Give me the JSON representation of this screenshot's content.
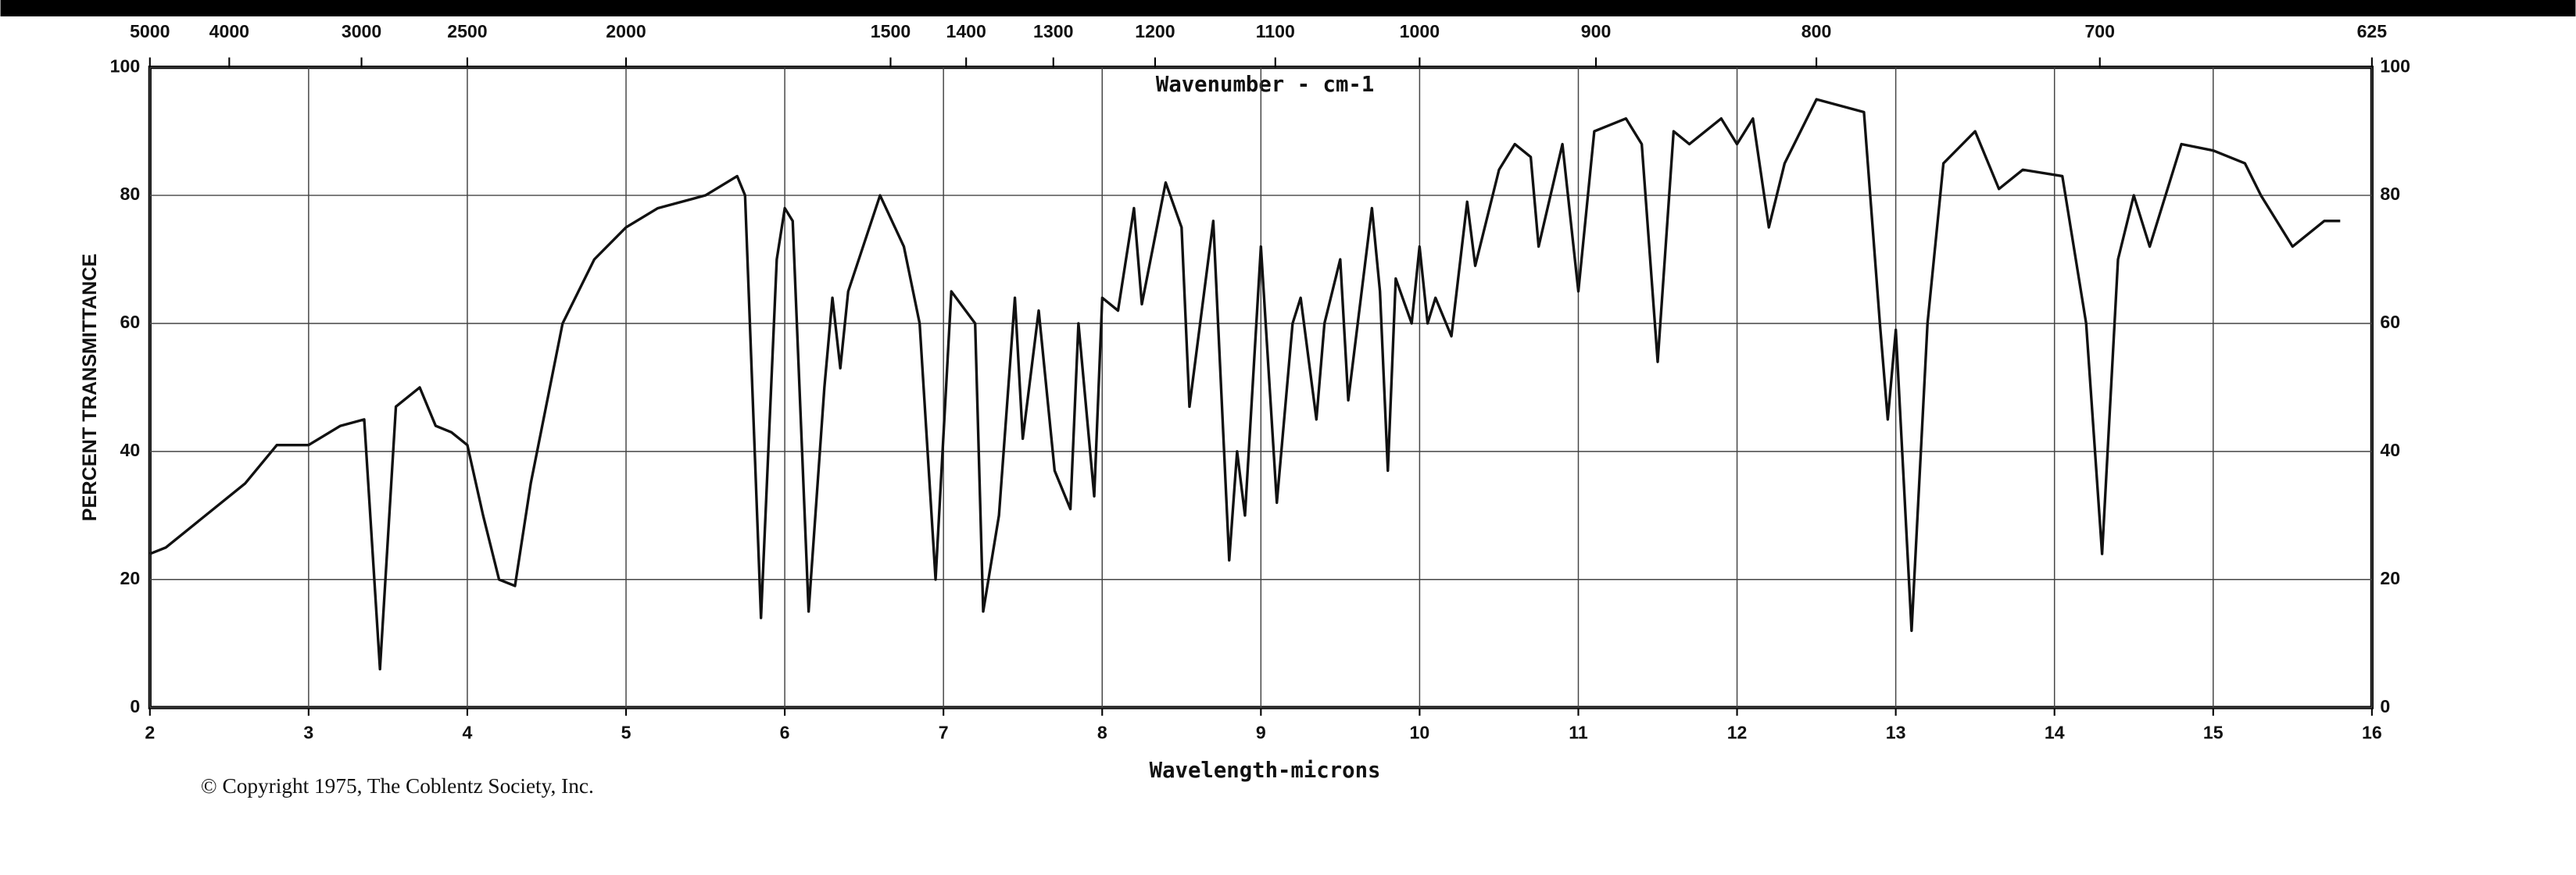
{
  "chart_data": {
    "type": "line",
    "title": "Wavenumber - cm-1",
    "xlabel": "Wavelength-microns",
    "ylabel": "PERCENT TRANSMITTANCE",
    "footnote": "© Copyright 1975, The Coblentz Society, Inc.",
    "xlim": [
      2,
      16
    ],
    "xticks": [
      2,
      3,
      4,
      5,
      6,
      7,
      8,
      9,
      10,
      11,
      12,
      13,
      14,
      15,
      16
    ],
    "ylim": [
      0,
      100
    ],
    "yticks": [
      0,
      20,
      40,
      60,
      80,
      100
    ],
    "x2lim": [
      5000,
      625
    ],
    "x2ticks": [
      5000,
      4000,
      3000,
      2500,
      2000,
      1500,
      1400,
      1300,
      1200,
      1100,
      1000,
      900,
      800,
      700,
      625
    ],
    "grid": true,
    "series": [
      {
        "color": "#111111",
        "x": [
          2.0,
          2.1,
          2.3,
          2.6,
          2.8,
          3.0,
          3.2,
          3.35,
          3.45,
          3.55,
          3.7,
          3.8,
          3.9,
          4.0,
          4.1,
          4.2,
          4.3,
          4.4,
          4.6,
          4.8,
          5.0,
          5.2,
          5.5,
          5.7,
          5.75,
          5.85,
          5.95,
          6.0,
          6.05,
          6.15,
          6.25,
          6.3,
          6.35,
          6.4,
          6.6,
          6.75,
          6.85,
          6.95,
          7.05,
          7.2,
          7.25,
          7.35,
          7.45,
          7.5,
          7.6,
          7.7,
          7.8,
          7.85,
          7.95,
          8.0,
          8.1,
          8.2,
          8.25,
          8.4,
          8.5,
          8.55,
          8.7,
          8.8,
          8.85,
          8.9,
          9.0,
          9.1,
          9.2,
          9.25,
          9.35,
          9.4,
          9.5,
          9.55,
          9.7,
          9.75,
          9.8,
          9.85,
          9.95,
          10.0,
          10.05,
          10.1,
          10.2,
          10.3,
          10.35,
          10.5,
          10.6,
          10.7,
          10.75,
          10.9,
          11.0,
          11.1,
          11.3,
          11.4,
          11.5,
          11.6,
          11.7,
          11.9,
          12.0,
          12.1,
          12.2,
          12.3,
          12.5,
          12.8,
          12.9,
          12.95,
          13.0,
          13.1,
          13.2,
          13.3,
          13.5,
          13.65,
          13.8,
          14.05,
          14.2,
          14.3,
          14.4,
          14.5,
          14.6,
          14.8,
          15.0,
          15.2,
          15.3,
          15.5,
          15.7,
          15.8
        ],
        "values": [
          24,
          25,
          29,
          35,
          41,
          41,
          44,
          45,
          6,
          47,
          50,
          44,
          43,
          41,
          30,
          20,
          19,
          35,
          60,
          70,
          75,
          78,
          80,
          83,
          80,
          14,
          70,
          78,
          76,
          15,
          50,
          64,
          53,
          65,
          80,
          72,
          60,
          20,
          65,
          60,
          15,
          30,
          64,
          42,
          62,
          37,
          31,
          60,
          33,
          64,
          62,
          78,
          63,
          82,
          75,
          47,
          76,
          23,
          40,
          30,
          72,
          32,
          60,
          64,
          45,
          60,
          70,
          48,
          78,
          65,
          37,
          67,
          60,
          72,
          60,
          64,
          58,
          79,
          69,
          84,
          88,
          86,
          72,
          88,
          65,
          90,
          92,
          88,
          54,
          90,
          88,
          92,
          88,
          92,
          75,
          85,
          95,
          93,
          60,
          45,
          59,
          12,
          60,
          85,
          90,
          81,
          84,
          83,
          60,
          24,
          70,
          80,
          72,
          88,
          87,
          85,
          80,
          72,
          76,
          76
        ]
      }
    ]
  }
}
